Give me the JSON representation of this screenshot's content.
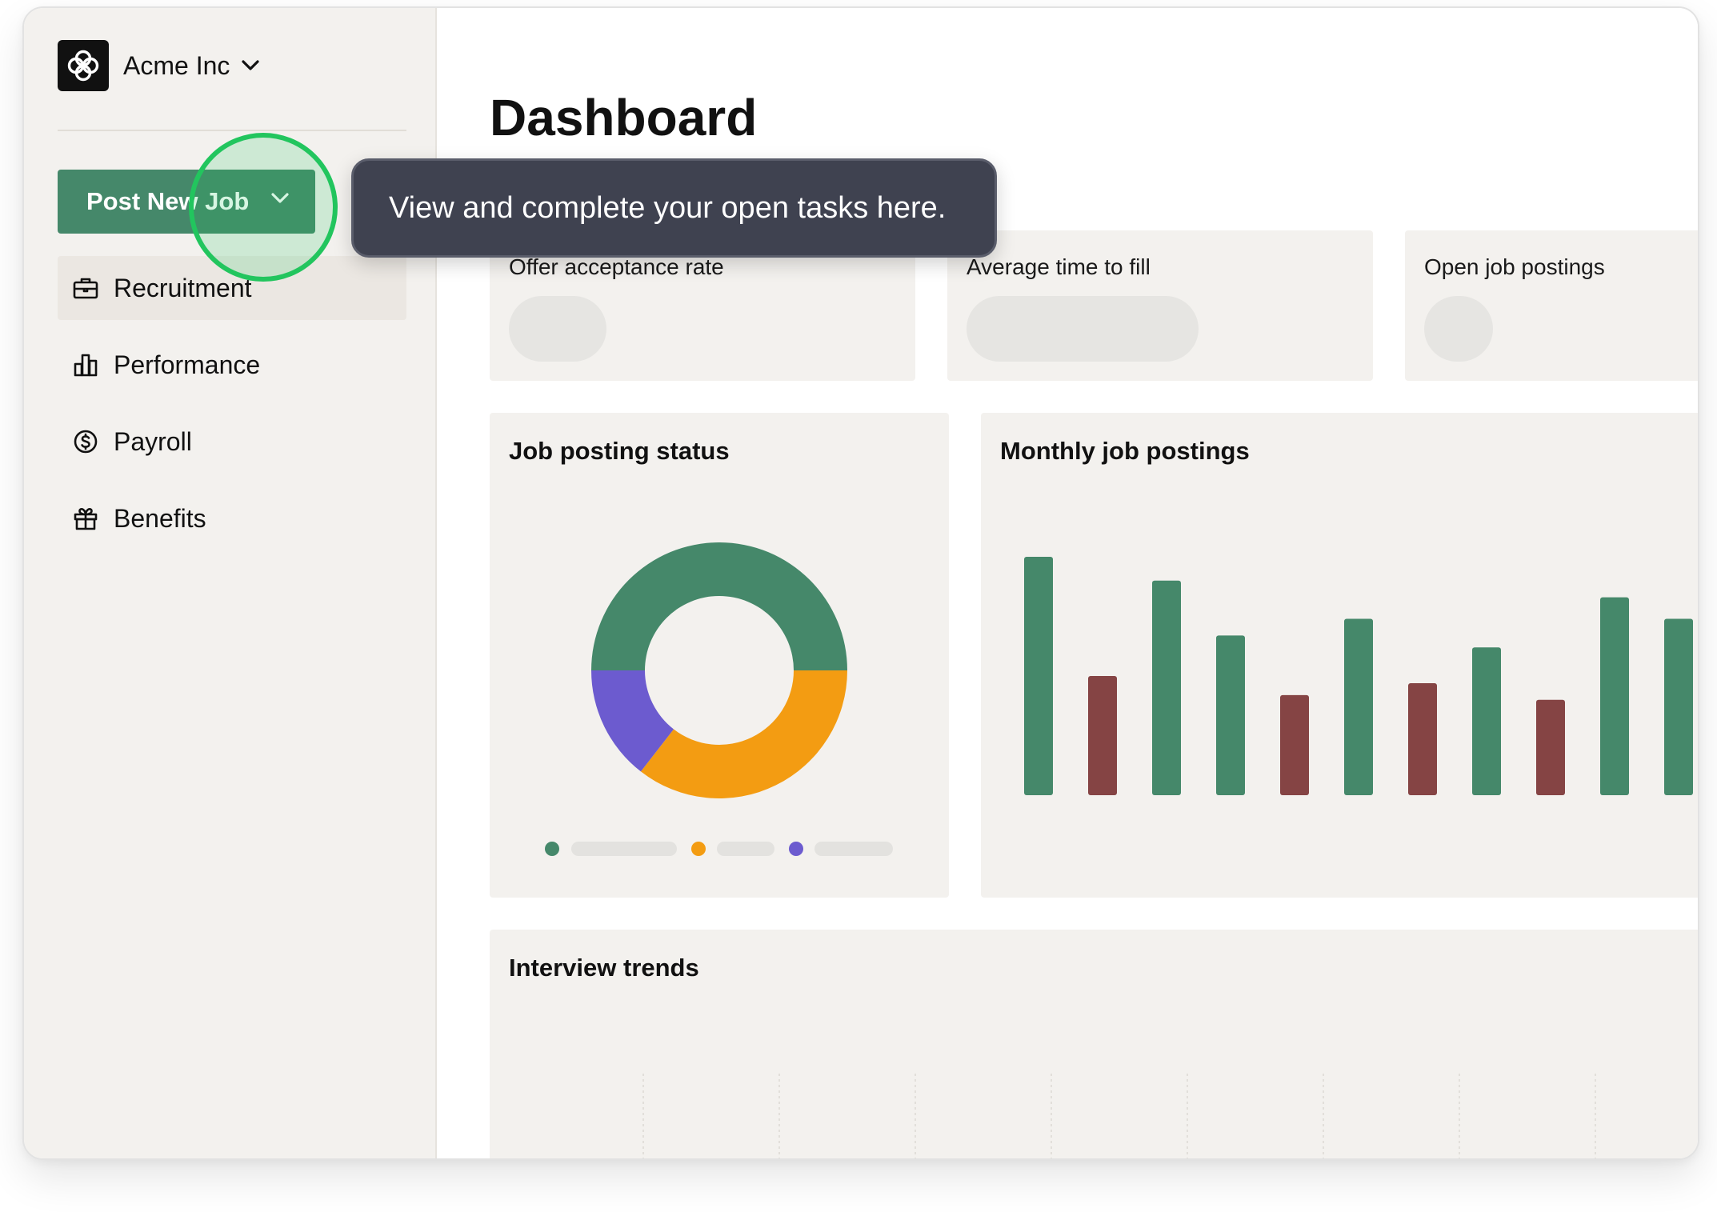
{
  "org": {
    "name": "Acme Inc"
  },
  "sidebar": {
    "post_button": "Post New Job",
    "items": [
      {
        "label": "Recruitment",
        "icon": "briefcase-icon",
        "active": true
      },
      {
        "label": "Performance",
        "icon": "bar-chart-icon",
        "active": false
      },
      {
        "label": "Payroll",
        "icon": "dollar-circle-icon",
        "active": false
      },
      {
        "label": "Benefits",
        "icon": "gift-icon",
        "active": false
      }
    ]
  },
  "main": {
    "title": "Dashboard",
    "metrics": [
      {
        "label": "Offer acceptance rate"
      },
      {
        "label": "Average time to fill"
      },
      {
        "label": "Open job postings"
      }
    ],
    "job_status": {
      "title": "Job posting status",
      "segments": [
        {
          "color": "#45886a",
          "fraction": 0.5
        },
        {
          "color": "#f39c12",
          "fraction": 0.355
        },
        {
          "color": "#6c5bcf",
          "fraction": 0.145
        }
      ]
    },
    "monthly": {
      "title": "Monthly job postings",
      "values": [
        100,
        50,
        90,
        67,
        42,
        74,
        47,
        62,
        40,
        83,
        74
      ],
      "colors": [
        "#45886a",
        "#854444",
        "#45886a",
        "#45886a",
        "#854444",
        "#45886a",
        "#854444",
        "#45886a",
        "#854444",
        "#45886a",
        "#45886a"
      ]
    },
    "interview": {
      "title": "Interview trends"
    }
  },
  "tooltip": {
    "text": "View and complete your open tasks here."
  },
  "colors": {
    "accent": "#45886a",
    "highlight": "#22c55e",
    "tooltip_bg": "#3f4250"
  }
}
